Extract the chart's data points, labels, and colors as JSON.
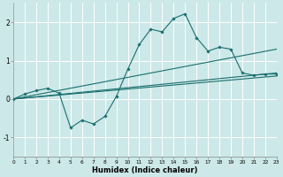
{
  "xlabel": "Humidex (Indice chaleur)",
  "bg_color": "#cce8e8",
  "line_color": "#1a6e6e",
  "grid_color": "#ffffff",
  "x_min": 0,
  "x_max": 23,
  "y_min": -1.5,
  "y_max": 2.5,
  "line1_x": [
    0,
    1,
    2,
    3,
    4,
    5,
    6,
    7,
    8,
    9,
    10,
    11,
    12,
    13,
    14,
    15,
    16,
    17,
    18,
    19,
    20,
    21,
    22,
    23
  ],
  "line1_y": [
    0.0,
    0.13,
    0.22,
    0.28,
    0.15,
    -0.75,
    -0.55,
    -0.65,
    -0.45,
    0.07,
    0.78,
    1.42,
    1.82,
    1.75,
    2.1,
    2.22,
    1.6,
    1.25,
    1.35,
    1.3,
    0.68,
    0.62,
    0.65,
    0.65
  ],
  "line2_x": [
    0,
    23
  ],
  "line2_y": [
    0.0,
    1.3
  ],
  "line3_x": [
    0,
    23
  ],
  "line3_y": [
    0.0,
    0.68
  ],
  "line4_x": [
    0,
    23
  ],
  "line4_y": [
    0.0,
    0.6
  ]
}
